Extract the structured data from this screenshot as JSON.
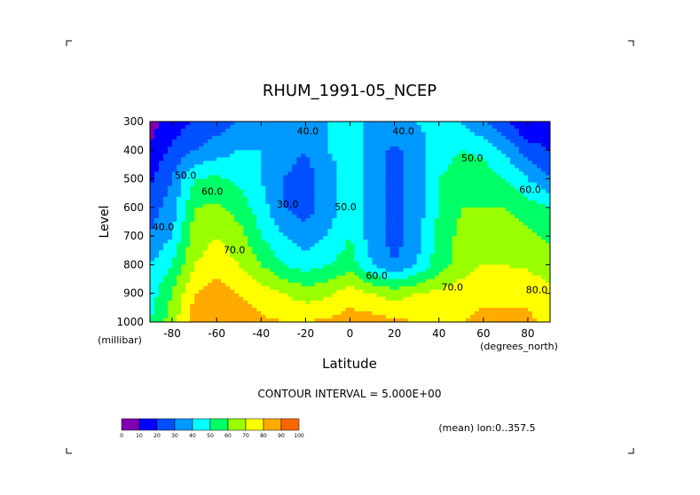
{
  "title": "RHUM_1991-05_NCEP",
  "x_axis": {
    "label": "Latitude",
    "unit_label": "(degrees_north)",
    "ticks": [
      "-80",
      "-60",
      "-40",
      "-20",
      "0",
      "20",
      "40",
      "60",
      "80"
    ]
  },
  "y_axis": {
    "label": "Level",
    "unit_label": "(millibar)",
    "ticks": [
      "300",
      "400",
      "500",
      "600",
      "700",
      "800",
      "900",
      "1000"
    ]
  },
  "contour_interval_text": "CONTOUR INTERVAL = 5.000E+00",
  "mean_text": "(mean) lon:0..357.5",
  "colorbar": {
    "labels": [
      "0",
      "10",
      "20",
      "30",
      "40",
      "50",
      "60",
      "70",
      "80",
      "90",
      "100"
    ],
    "colors": [
      "#7f00b0",
      "#0000ff",
      "#0050ff",
      "#0099ff",
      "#00ffff",
      "#00ff66",
      "#99ff00",
      "#ffff00",
      "#ffaa00",
      "#ff6600",
      "#ff0000"
    ]
  },
  "contour_labels": [
    {
      "text": "40.0",
      "lat": -19,
      "lev": 345
    },
    {
      "text": "40.0",
      "lat": 24,
      "lev": 345
    },
    {
      "text": "50.0",
      "lat": 55,
      "lev": 440
    },
    {
      "text": "50.0",
      "lat": -74,
      "lev": 500
    },
    {
      "text": "60.0",
      "lat": -62,
      "lev": 555
    },
    {
      "text": "30.0",
      "lat": -28,
      "lev": 600
    },
    {
      "text": "50.0",
      "lat": -2,
      "lev": 610
    },
    {
      "text": "60.0",
      "lat": 81,
      "lev": 550
    },
    {
      "text": "40.0",
      "lat": -84,
      "lev": 680
    },
    {
      "text": "70.0",
      "lat": -52,
      "lev": 760
    },
    {
      "text": "60.0",
      "lat": 12,
      "lev": 850
    },
    {
      "text": "70.0",
      "lat": 46,
      "lev": 890
    },
    {
      "text": "80.0",
      "lat": 84,
      "lev": 900
    }
  ],
  "chart_data": {
    "type": "heatmap",
    "title": "RHUM_1991-05_NCEP",
    "xlabel": "Latitude",
    "ylabel": "Level",
    "xlim": [
      -90,
      90
    ],
    "ylim": [
      1000,
      300
    ],
    "units_z": "%",
    "contour_interval": 5,
    "x": [
      -90,
      -80,
      -70,
      -60,
      -50,
      -40,
      -30,
      -20,
      -10,
      0,
      10,
      20,
      30,
      40,
      50,
      60,
      70,
      80,
      90
    ],
    "y": [
      300,
      400,
      500,
      600,
      700,
      800,
      900,
      1000
    ],
    "z": [
      [
        5,
        15,
        20,
        25,
        30,
        35,
        40,
        40,
        40,
        40,
        40,
        38,
        40,
        45,
        40,
        30,
        20,
        10,
        10
      ],
      [
        12,
        22,
        30,
        35,
        40,
        40,
        35,
        30,
        40,
        45,
        35,
        28,
        35,
        45,
        50,
        48,
        38,
        25,
        20
      ],
      [
        18,
        30,
        50,
        52,
        48,
        40,
        30,
        25,
        35,
        45,
        35,
        25,
        35,
        50,
        55,
        55,
        50,
        40,
        30
      ],
      [
        25,
        35,
        60,
        62,
        55,
        45,
        30,
        25,
        35,
        45,
        35,
        25,
        35,
        50,
        60,
        60,
        60,
        55,
        50
      ],
      [
        30,
        40,
        65,
        70,
        65,
        50,
        40,
        35,
        40,
        50,
        35,
        25,
        35,
        55,
        62,
        65,
        65,
        62,
        58
      ],
      [
        40,
        50,
        70,
        75,
        70,
        60,
        50,
        45,
        50,
        55,
        40,
        30,
        40,
        55,
        65,
        70,
        70,
        68,
        65
      ],
      [
        45,
        60,
        80,
        85,
        80,
        75,
        70,
        65,
        68,
        75,
        70,
        65,
        70,
        72,
        75,
        78,
        78,
        78,
        72
      ],
      [
        50,
        65,
        85,
        88,
        85,
        82,
        80,
        80,
        82,
        85,
        85,
        82,
        80,
        80,
        80,
        82,
        82,
        82,
        78
      ]
    ]
  }
}
